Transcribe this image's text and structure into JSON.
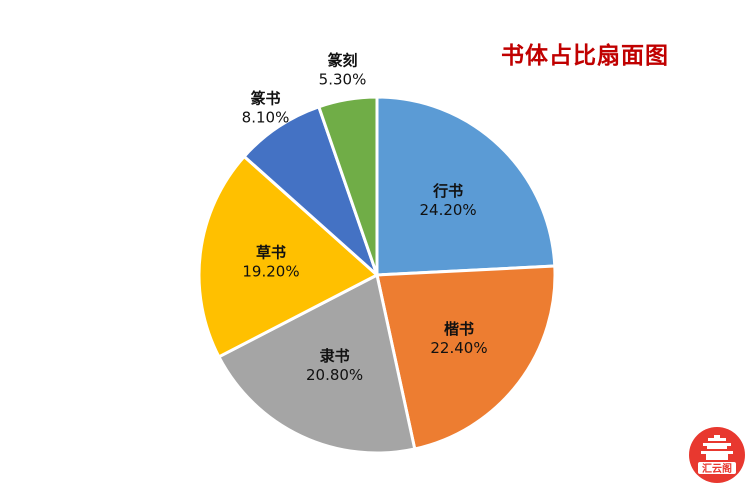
{
  "chart_data": {
    "type": "pie",
    "title": "书体占比扇面图",
    "slices": [
      {
        "label": "行书",
        "percent_label": "24.20%",
        "value": 24.2,
        "color": "#5b9bd5"
      },
      {
        "label": "楷书",
        "percent_label": "22.40%",
        "value": 22.4,
        "color": "#ed7d31"
      },
      {
        "label": "隶书",
        "percent_label": "20.80%",
        "value": 20.8,
        "color": "#a5a5a5"
      },
      {
        "label": "草书",
        "percent_label": "19.20%",
        "value": 19.2,
        "color": "#ffc000"
      },
      {
        "label": "篆书",
        "percent_label": "8.10%",
        "value": 8.1,
        "color": "#4472c4"
      },
      {
        "label": "篆刻",
        "percent_label": "5.30%",
        "value": 5.3,
        "color": "#70ad47"
      }
    ],
    "start": "12 o'clock",
    "direction": "clockwise",
    "legend": "none"
  },
  "watermark": {
    "text": "汇云阁",
    "color": "#e8382f"
  }
}
